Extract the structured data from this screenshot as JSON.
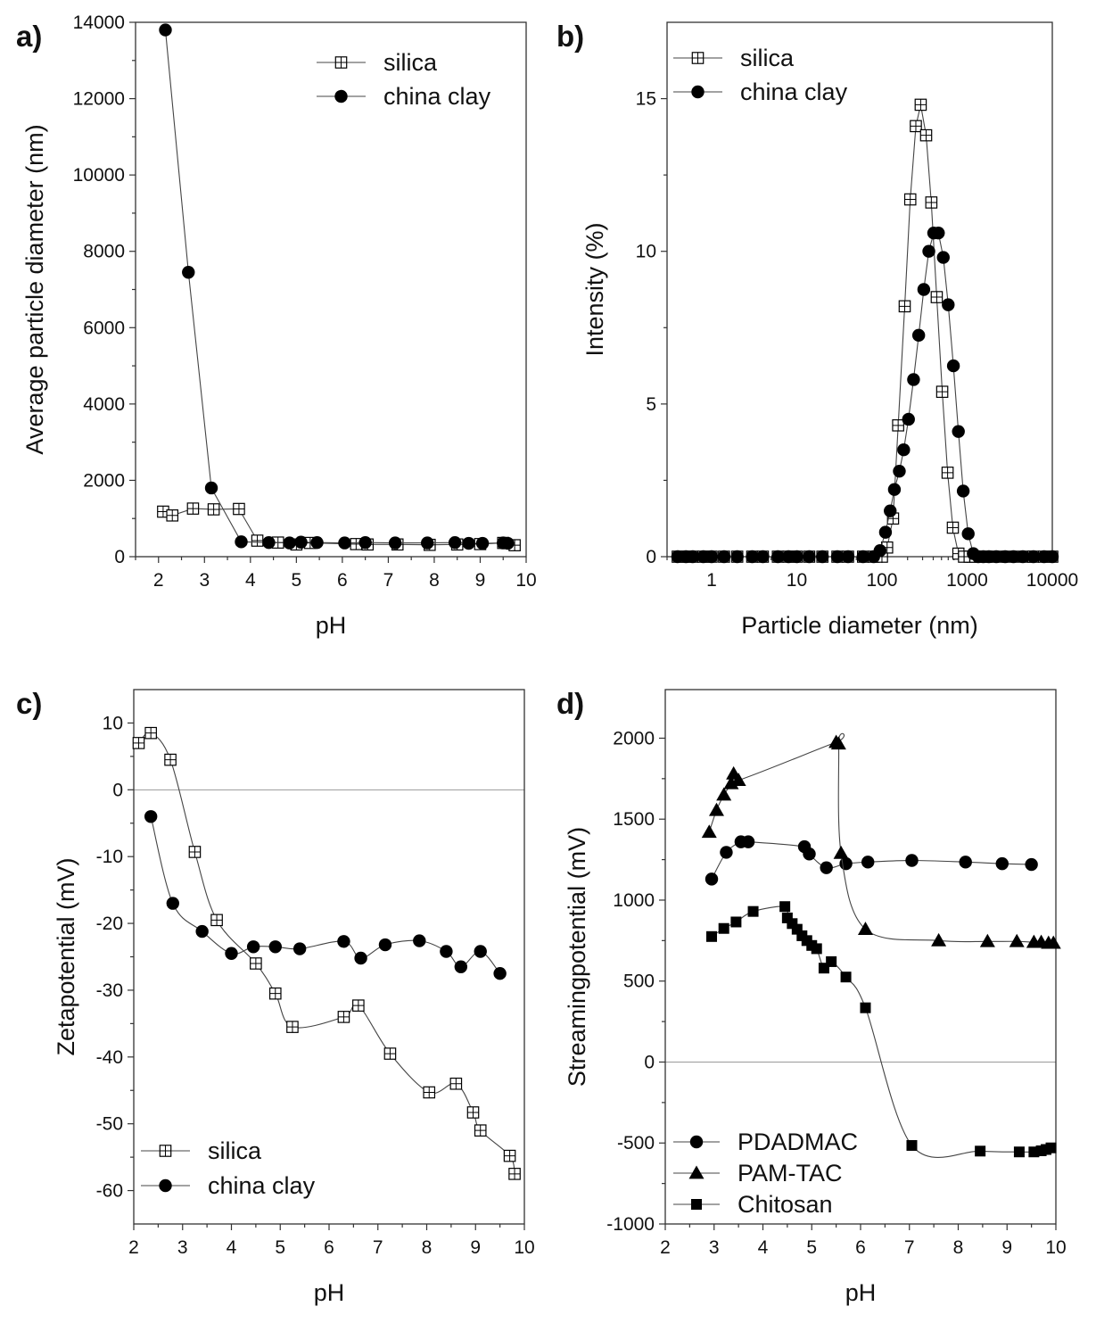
{
  "colors": {
    "axis": "#333333",
    "line": "#444444",
    "marker": "#000000",
    "zero_line": "#9a9a9a"
  },
  "chart_data": [
    {
      "panel": "a)",
      "type": "line",
      "xlabel": "pH",
      "ylabel": "Average particle diameter (nm)",
      "xlim": [
        1.5,
        10
      ],
      "ylim": [
        0,
        14000
      ],
      "xticks": [
        2,
        3,
        4,
        5,
        6,
        7,
        8,
        9,
        10
      ],
      "yticks": [
        0,
        2000,
        4000,
        6000,
        8000,
        10000,
        12000,
        14000
      ],
      "legend": "top-right",
      "zero_line": false,
      "xscale": "linear",
      "series": [
        {
          "name": "silica",
          "marker": "boxplus",
          "x": [
            2.1,
            2.3,
            2.75,
            3.2,
            3.75,
            4.15,
            4.6,
            5.0,
            5.3,
            6.3,
            6.55,
            7.2,
            7.9,
            8.5,
            9.0,
            9.5,
            9.75
          ],
          "y": [
            1180,
            1080,
            1260,
            1240,
            1250,
            420,
            370,
            320,
            360,
            330,
            320,
            320,
            310,
            320,
            330,
            360,
            300
          ]
        },
        {
          "name": "china clay",
          "marker": "circle",
          "x": [
            2.15,
            2.65,
            3.15,
            3.8,
            4.4,
            4.85,
            5.1,
            5.45,
            6.05,
            6.5,
            7.15,
            7.85,
            8.45,
            8.75,
            9.05,
            9.5,
            9.6
          ],
          "y": [
            13800,
            7450,
            1800,
            390,
            370,
            360,
            380,
            370,
            360,
            370,
            360,
            360,
            370,
            350,
            350,
            360,
            350
          ]
        }
      ]
    },
    {
      "panel": "b)",
      "type": "line",
      "xlabel": "Particle diameter (nm)",
      "ylabel": "Intensity (%)",
      "xscale": "log",
      "xlim": [
        0.3,
        10000
      ],
      "ylim": [
        0,
        17.5
      ],
      "xticks": [
        1,
        10,
        100,
        1000,
        10000
      ],
      "xtick_labels": [
        "1",
        "10",
        "100",
        "1000",
        "10000"
      ],
      "yticks": [
        0,
        5,
        10,
        15
      ],
      "legend": "top-left",
      "zero_line": false,
      "series": [
        {
          "name": "silica",
          "marker": "boxplus",
          "x": [
            0.4,
            0.5,
            0.6,
            0.8,
            1,
            1.4,
            2,
            3,
            4,
            6,
            8,
            10,
            14,
            20,
            30,
            40,
            60,
            80,
            100,
            115,
            135,
            155,
            185,
            215,
            250,
            285,
            330,
            380,
            440,
            510,
            590,
            680,
            790,
            920,
            1070,
            1250,
            1460,
            1700,
            2000,
            2500,
            3000,
            4000,
            5000,
            6000,
            8000,
            10000
          ],
          "y": [
            0,
            0,
            0,
            0,
            0,
            0,
            0,
            0,
            0,
            0,
            0,
            0,
            0,
            0,
            0,
            0,
            0,
            0,
            0,
            0.3,
            1.25,
            4.3,
            8.2,
            11.7,
            14.1,
            14.8,
            13.8,
            11.6,
            8.5,
            5.4,
            2.75,
            0.95,
            0.1,
            0,
            0,
            0,
            0,
            0,
            0,
            0,
            0,
            0,
            0,
            0,
            0,
            0
          ]
        },
        {
          "name": "china clay",
          "marker": "circle",
          "x": [
            0.4,
            0.5,
            0.6,
            0.8,
            1,
            1.4,
            2,
            3,
            4,
            6,
            8,
            10,
            14,
            20,
            30,
            40,
            60,
            80,
            95,
            110,
            125,
            140,
            160,
            180,
            205,
            235,
            270,
            310,
            355,
            405,
            460,
            525,
            600,
            690,
            790,
            900,
            1030,
            1180,
            1350,
            1550,
            1800,
            2200,
            2800,
            3500,
            4500,
            6000,
            8000,
            10000
          ],
          "y": [
            0,
            0,
            0,
            0,
            0,
            0,
            0,
            0,
            0,
            0,
            0,
            0,
            0,
            0,
            0,
            0,
            0,
            0,
            0.2,
            0.8,
            1.5,
            2.2,
            2.8,
            3.5,
            4.5,
            5.8,
            7.25,
            8.75,
            10.0,
            10.6,
            10.6,
            9.8,
            8.25,
            6.25,
            4.1,
            2.15,
            0.75,
            0.1,
            0,
            0,
            0,
            0,
            0,
            0,
            0,
            0,
            0,
            0
          ]
        }
      ]
    },
    {
      "panel": "c)",
      "type": "line",
      "xlabel": "pH",
      "ylabel": "Zetapotential (mV)",
      "xlim": [
        2,
        10
      ],
      "ylim": [
        -65,
        15
      ],
      "xticks": [
        2,
        3,
        4,
        5,
        6,
        7,
        8,
        9,
        10
      ],
      "yticks": [
        -60,
        -50,
        -40,
        -30,
        -20,
        -10,
        0,
        10
      ],
      "legend": "bottom-left",
      "zero_line": true,
      "xscale": "linear",
      "series": [
        {
          "name": "silica",
          "marker": "boxplus",
          "x": [
            2.1,
            2.35,
            2.75,
            3.25,
            3.7,
            4.5,
            4.9,
            5.25,
            6.3,
            6.6,
            7.25,
            8.05,
            8.6,
            8.95,
            9.1,
            9.7,
            9.8
          ],
          "y": [
            7.0,
            8.5,
            4.5,
            -9.3,
            -19.5,
            -26.0,
            -30.5,
            -35.5,
            -34.0,
            -32.3,
            -39.5,
            -45.3,
            -44.0,
            -48.3,
            -51.0,
            -54.8,
            -57.5
          ]
        },
        {
          "name": "china clay",
          "marker": "circle",
          "x": [
            2.35,
            2.8,
            3.4,
            4.0,
            4.45,
            4.9,
            5.4,
            6.3,
            6.65,
            7.15,
            7.85,
            8.4,
            8.7,
            9.1,
            9.5
          ],
          "y": [
            -4.0,
            -17.0,
            -21.2,
            -24.5,
            -23.5,
            -23.5,
            -23.8,
            -22.7,
            -25.2,
            -23.2,
            -22.6,
            -24.2,
            -26.5,
            -24.2,
            -27.5
          ]
        }
      ]
    },
    {
      "panel": "d)",
      "type": "line",
      "xlabel": "pH",
      "ylabel": "Streamingpotential (mV)",
      "xlim": [
        2,
        10
      ],
      "ylim": [
        -1000,
        2300
      ],
      "xticks": [
        2,
        3,
        4,
        5,
        6,
        7,
        8,
        9,
        10
      ],
      "yticks": [
        -1000,
        -500,
        0,
        500,
        1000,
        1500,
        2000
      ],
      "legend": "bottom-left",
      "zero_line": true,
      "xscale": "linear",
      "series": [
        {
          "name": "PDADMAC",
          "marker": "circle",
          "x": [
            2.95,
            3.25,
            3.55,
            3.7,
            4.85,
            4.95,
            5.3,
            5.7,
            6.15,
            7.05,
            8.15,
            8.9,
            9.5
          ],
          "y": [
            1130,
            1295,
            1360,
            1360,
            1330,
            1285,
            1200,
            1225,
            1235,
            1245,
            1235,
            1225,
            1220
          ]
        },
        {
          "name": "PAM-TAC",
          "marker": "triangle",
          "x": [
            2.9,
            3.05,
            3.2,
            3.35,
            3.4,
            3.5,
            5.5,
            5.55,
            5.6,
            6.1,
            7.6,
            8.6,
            9.2,
            9.55,
            9.7,
            9.85,
            9.95
          ],
          "y": [
            1420,
            1555,
            1650,
            1720,
            1780,
            1740,
            1975,
            1965,
            1290,
            820,
            750,
            745,
            745,
            740,
            740,
            735,
            735
          ]
        },
        {
          "name": "Chitosan",
          "marker": "square",
          "x": [
            2.95,
            3.2,
            3.45,
            3.8,
            4.45,
            4.5,
            4.6,
            4.7,
            4.8,
            4.9,
            5.0,
            5.1,
            5.25,
            5.4,
            5.7,
            6.1,
            7.05,
            8.45,
            9.25,
            9.55,
            9.7,
            9.8,
            9.9
          ],
          "y": [
            775,
            825,
            865,
            930,
            960,
            890,
            855,
            820,
            780,
            750,
            720,
            700,
            580,
            620,
            525,
            335,
            -515,
            -550,
            -555,
            -555,
            -548,
            -540,
            -530
          ]
        }
      ]
    }
  ]
}
